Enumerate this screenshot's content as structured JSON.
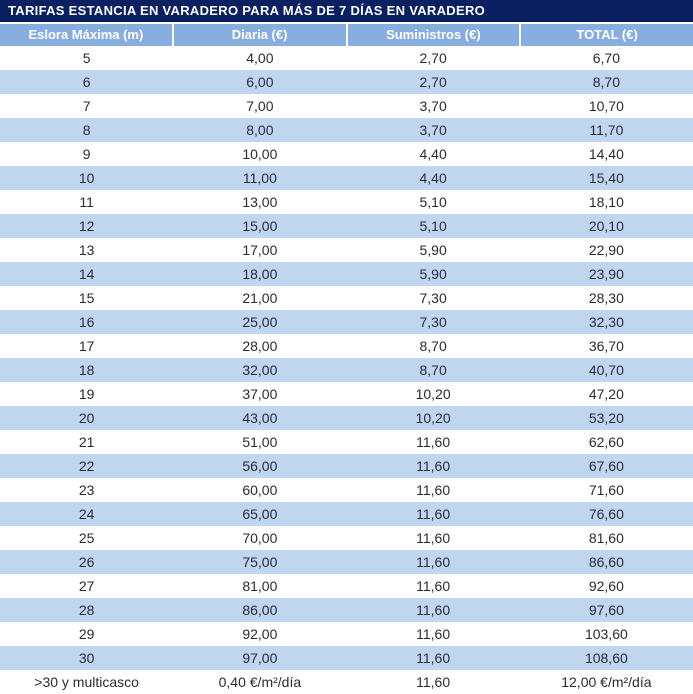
{
  "title": "TARIFAS ESTANCIA EN VARADERO PARA MÁS DE 7 DÍAS EN VARADERO",
  "colors": {
    "title_bar_bg": "#0a2061",
    "header_bg": "#87aedf",
    "alt_row_bg": "#c0d5ef",
    "body_text": "#2b2b33",
    "header_text": "#ffffff"
  },
  "table": {
    "headers": [
      "Eslora Máxima (m)",
      "Diaria (€)",
      "Suministros (€)",
      "TOTAL (€)"
    ],
    "rows": [
      {
        "eslora": "5",
        "diaria": "4,00",
        "suministros": "2,70",
        "total": "6,70"
      },
      {
        "eslora": "6",
        "diaria": "6,00",
        "suministros": "2,70",
        "total": "8,70"
      },
      {
        "eslora": "7",
        "diaria": "7,00",
        "suministros": "3,70",
        "total": "10,70"
      },
      {
        "eslora": "8",
        "diaria": "8,00",
        "suministros": "3,70",
        "total": "11,70"
      },
      {
        "eslora": "9",
        "diaria": "10,00",
        "suministros": "4,40",
        "total": "14,40"
      },
      {
        "eslora": "10",
        "diaria": "11,00",
        "suministros": "4,40",
        "total": "15,40"
      },
      {
        "eslora": "11",
        "diaria": "13,00",
        "suministros": "5,10",
        "total": "18,10"
      },
      {
        "eslora": "12",
        "diaria": "15,00",
        "suministros": "5,10",
        "total": "20,10"
      },
      {
        "eslora": "13",
        "diaria": "17,00",
        "suministros": "5,90",
        "total": "22,90"
      },
      {
        "eslora": "14",
        "diaria": "18,00",
        "suministros": "5,90",
        "total": "23,90"
      },
      {
        "eslora": "15",
        "diaria": "21,00",
        "suministros": "7,30",
        "total": "28,30"
      },
      {
        "eslora": "16",
        "diaria": "25,00",
        "suministros": "7,30",
        "total": "32,30"
      },
      {
        "eslora": "17",
        "diaria": "28,00",
        "suministros": "8,70",
        "total": "36,70"
      },
      {
        "eslora": "18",
        "diaria": "32,00",
        "suministros": "8,70",
        "total": "40,70"
      },
      {
        "eslora": "19",
        "diaria": "37,00",
        "suministros": "10,20",
        "total": "47,20"
      },
      {
        "eslora": "20",
        "diaria": "43,00",
        "suministros": "10,20",
        "total": "53,20"
      },
      {
        "eslora": "21",
        "diaria": "51,00",
        "suministros": "11,60",
        "total": "62,60"
      },
      {
        "eslora": "22",
        "diaria": "56,00",
        "suministros": "11,60",
        "total": "67,60"
      },
      {
        "eslora": "23",
        "diaria": "60,00",
        "suministros": "11,60",
        "total": "71,60"
      },
      {
        "eslora": "24",
        "diaria": "65,00",
        "suministros": "11,60",
        "total": "76,60"
      },
      {
        "eslora": "25",
        "diaria": "70,00",
        "suministros": "11,60",
        "total": "81,60"
      },
      {
        "eslora": "26",
        "diaria": "75,00",
        "suministros": "11,60",
        "total": "86,60"
      },
      {
        "eslora": "27",
        "diaria": "81,00",
        "suministros": "11,60",
        "total": "92,60"
      },
      {
        "eslora": "28",
        "diaria": "86,00",
        "suministros": "11,60",
        "total": "97,60"
      },
      {
        "eslora": "29",
        "diaria": "92,00",
        "suministros": "11,60",
        "total": "103,60"
      },
      {
        "eslora": "30",
        "diaria": "97,00",
        "suministros": "11,60",
        "total": "108,60"
      },
      {
        "eslora": ">30 y multicasco",
        "diaria": "0,40 €/m²/día",
        "suministros": "11,60",
        "total": "12,00 €/m²/día"
      }
    ]
  }
}
